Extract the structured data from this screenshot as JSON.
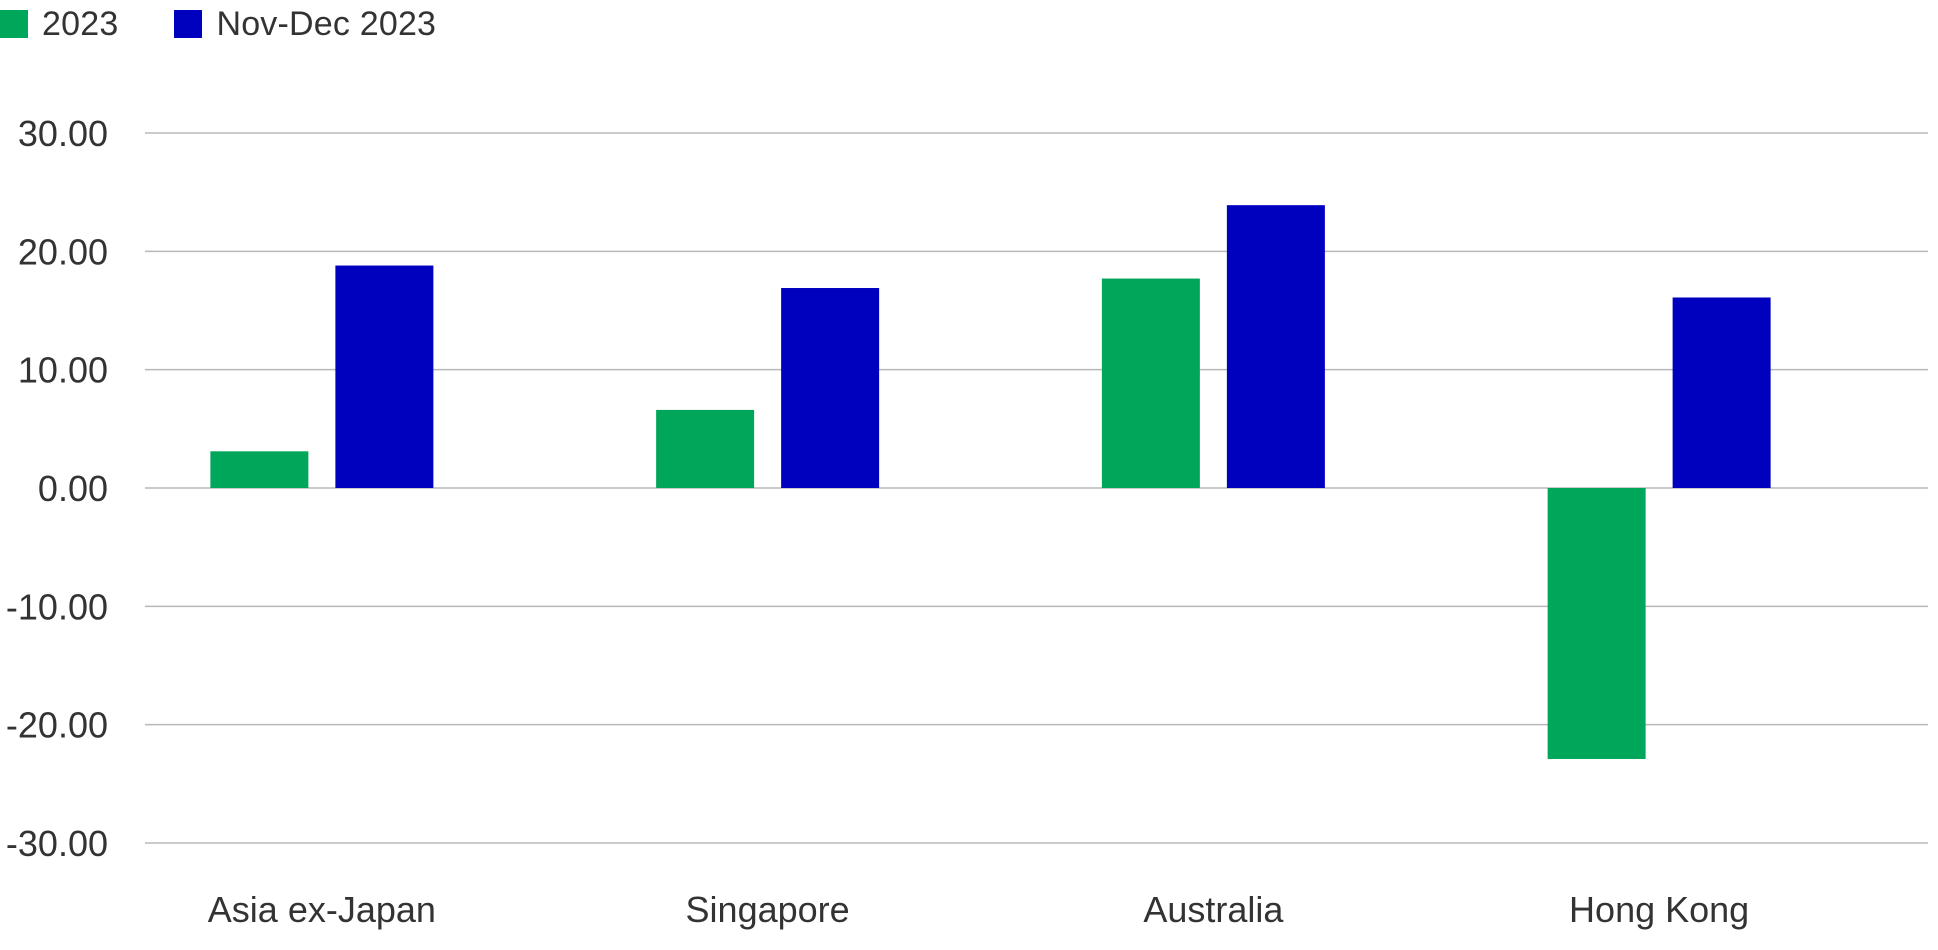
{
  "chart_data": {
    "type": "bar",
    "categories": [
      "Asia ex-Japan",
      "Singapore",
      "Australia",
      "Hong Kong"
    ],
    "series": [
      {
        "name": "2023",
        "color": "#00a65a",
        "values": [
          3.1,
          6.6,
          17.7,
          -22.9
        ]
      },
      {
        "name": "Nov-Dec 2023",
        "color": "#0000bf",
        "values": [
          18.8,
          16.9,
          23.9,
          16.1
        ]
      }
    ],
    "yticks": [
      "30.00",
      "20.00",
      "10.00",
      "0.00",
      "-10.00",
      "-20.00",
      "-30.00"
    ],
    "ylim": [
      -30,
      30
    ],
    "title": "",
    "xlabel": "",
    "ylabel": "",
    "grid": true,
    "legend_position": "top-left"
  }
}
